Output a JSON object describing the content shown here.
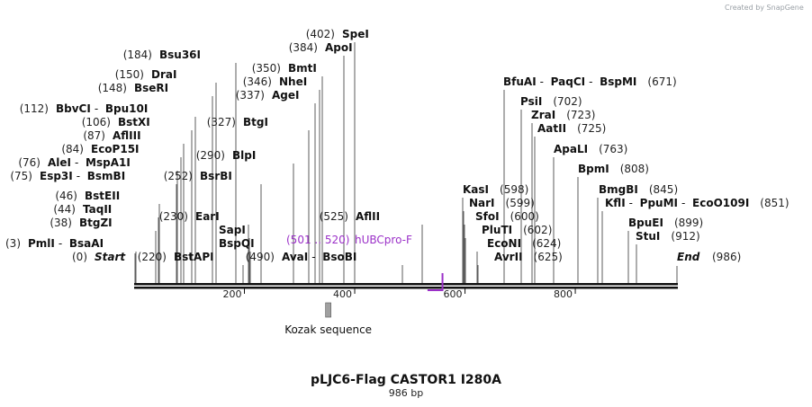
{
  "credit": "Created by SnapGene",
  "title": "pLJC6-Flag CASTOR1 I280A",
  "subtitle": "986 bp",
  "axis": {
    "length": 986,
    "ticks": [
      200,
      400,
      600,
      800
    ]
  },
  "feature": {
    "name": "Kozak sequence",
    "start": 352,
    "end": 361,
    "color": "#a0a0a0"
  },
  "primer": {
    "name": "hUBCpro-F",
    "range_label": "(501 .. 520)",
    "start": 501,
    "end": 520,
    "color": "#9b30c8"
  },
  "sites": [
    {
      "row": 0,
      "pos": 402,
      "text": "(402)",
      "enzymes": [
        "SpeI"
      ]
    },
    {
      "row": 1,
      "pos": 384,
      "text": "(384)",
      "enzymes": [
        "ApoI"
      ]
    },
    {
      "row": 2,
      "pos": 184,
      "text": "(184)",
      "enzymes": [
        "Bsu36I"
      ]
    },
    {
      "row": 3,
      "pos": 350,
      "text": "(350)",
      "enzymes": [
        "BmtI"
      ]
    },
    {
      "row": 4,
      "pos": 150,
      "text": "(150)",
      "enzymes": [
        "DraI"
      ]
    },
    {
      "row": 5,
      "pos": 346,
      "text": "(346)",
      "enzymes": [
        "NheI"
      ]
    },
    {
      "row": 6,
      "pos": 148,
      "text": "(148)",
      "enzymes": [
        "BseRI"
      ]
    },
    {
      "row": 7,
      "pos": 337,
      "text": "(337)",
      "enzymes": [
        "AgeI"
      ]
    },
    {
      "row": 8,
      "pos": 112,
      "text": "(112)",
      "enzymes": [
        "BbvCI",
        "Bpu10I"
      ]
    },
    {
      "row": 9,
      "pos": 327,
      "text": "(327)",
      "enzymes": [
        "BtgI"
      ]
    },
    {
      "row": 10,
      "pos": 106,
      "text": "(106)",
      "enzymes": [
        "BstXI"
      ]
    },
    {
      "row": 11,
      "pos": 87,
      "text": "(87)",
      "enzymes": [
        "AflIII"
      ]
    },
    {
      "row": 12,
      "pos": 84,
      "text": "(84)",
      "enzymes": [
        "EcoP15I"
      ]
    },
    {
      "row": 13,
      "pos": 290,
      "text": "(290)",
      "enzymes": [
        "BlpI"
      ]
    },
    {
      "row": 14,
      "pos": 76,
      "text": "(76)",
      "enzymes": [
        "AleI",
        "MspA1I"
      ]
    },
    {
      "row": 15,
      "pos": 75,
      "text": "(75)",
      "enzymes": [
        "Esp3I",
        "BsmBI"
      ]
    },
    {
      "row": 16,
      "pos": 252,
      "text": "(252)",
      "enzymes": [
        "BsrBI"
      ]
    },
    {
      "row": 17,
      "pos": 46,
      "text": "(46)",
      "enzymes": [
        "BstEII"
      ]
    },
    {
      "row": 18,
      "pos": 44,
      "text": "(44)",
      "enzymes": [
        "TaqII"
      ]
    },
    {
      "row": 19,
      "pos": 230,
      "text": "(230)",
      "enzymes": [
        "EarI"
      ]
    },
    {
      "row": 20,
      "pos": 38,
      "text": "(38)",
      "enzymes": [
        "BtgZI"
      ]
    },
    {
      "row": 21,
      "pos": 232,
      "text": "",
      "enzymes": [
        "SapI"
      ]
    },
    {
      "row": 22,
      "pos": 3,
      "text": "(3)",
      "enzymes": [
        "PmlI",
        "BsaAI"
      ]
    },
    {
      "row": 23,
      "pos": 234,
      "text": "",
      "enzymes": [
        "BspQI"
      ]
    },
    {
      "row": 24,
      "pos": 220,
      "text": "(220)",
      "enzymes": [
        "BstAPI"
      ]
    },
    {
      "row": 25,
      "pos": 490,
      "text": "(490)",
      "enzymes": [
        "AvaI",
        "BsoBI"
      ]
    },
    {
      "row": 26,
      "pos": 525,
      "text": "(525)",
      "enzymes": [
        "AflII"
      ]
    },
    {
      "row": 27,
      "pos": 671,
      "text": "(671)",
      "enzymes": [
        "BfuAI",
        "PaqCI",
        "BspMI"
      ]
    },
    {
      "row": 28,
      "pos": 702,
      "text": "(702)",
      "enzymes": [
        "PsiI"
      ]
    },
    {
      "row": 29,
      "pos": 723,
      "text": "(723)",
      "enzymes": [
        "ZraI"
      ]
    },
    {
      "row": 30,
      "pos": 725,
      "text": "(725)",
      "enzymes": [
        "AatII"
      ]
    },
    {
      "row": 31,
      "pos": 763,
      "text": "(763)",
      "enzymes": [
        "ApaLI"
      ]
    },
    {
      "row": 32,
      "pos": 808,
      "text": "(808)",
      "enzymes": [
        "BpmI"
      ]
    },
    {
      "row": 33,
      "pos": 598,
      "text": "(598)",
      "enzymes": [
        "KasI"
      ]
    },
    {
      "row": 34,
      "pos": 845,
      "text": "(845)",
      "enzymes": [
        "BmgBI"
      ]
    },
    {
      "row": 35,
      "pos": 851,
      "text": "(851)",
      "enzymes": [
        "KflI",
        "PpuMI",
        "EcoO109I"
      ]
    },
    {
      "row": 36,
      "pos": 599,
      "text": "(599)",
      "enzymes": [
        "NarI"
      ]
    },
    {
      "row": 37,
      "pos": 600,
      "text": "(600)",
      "enzymes": [
        "SfoI"
      ]
    },
    {
      "row": 38,
      "pos": 899,
      "text": "(899)",
      "enzymes": [
        "BpuEI"
      ]
    },
    {
      "row": 39,
      "pos": 602,
      "text": "(602)",
      "enzymes": [
        "PluTI"
      ]
    },
    {
      "row": 40,
      "pos": 912,
      "text": "(912)",
      "enzymes": [
        "StuI"
      ]
    },
    {
      "row": 41,
      "pos": 624,
      "text": "(624)",
      "enzymes": [
        "EcoNI"
      ]
    },
    {
      "row": 42,
      "pos": 625,
      "text": "(625)",
      "enzymes": [
        "AvrII"
      ]
    }
  ],
  "ends": [
    {
      "label": "Start",
      "text": "(0)",
      "pos": 0
    },
    {
      "label": "End",
      "text": "(986)",
      "pos": 986
    }
  ]
}
